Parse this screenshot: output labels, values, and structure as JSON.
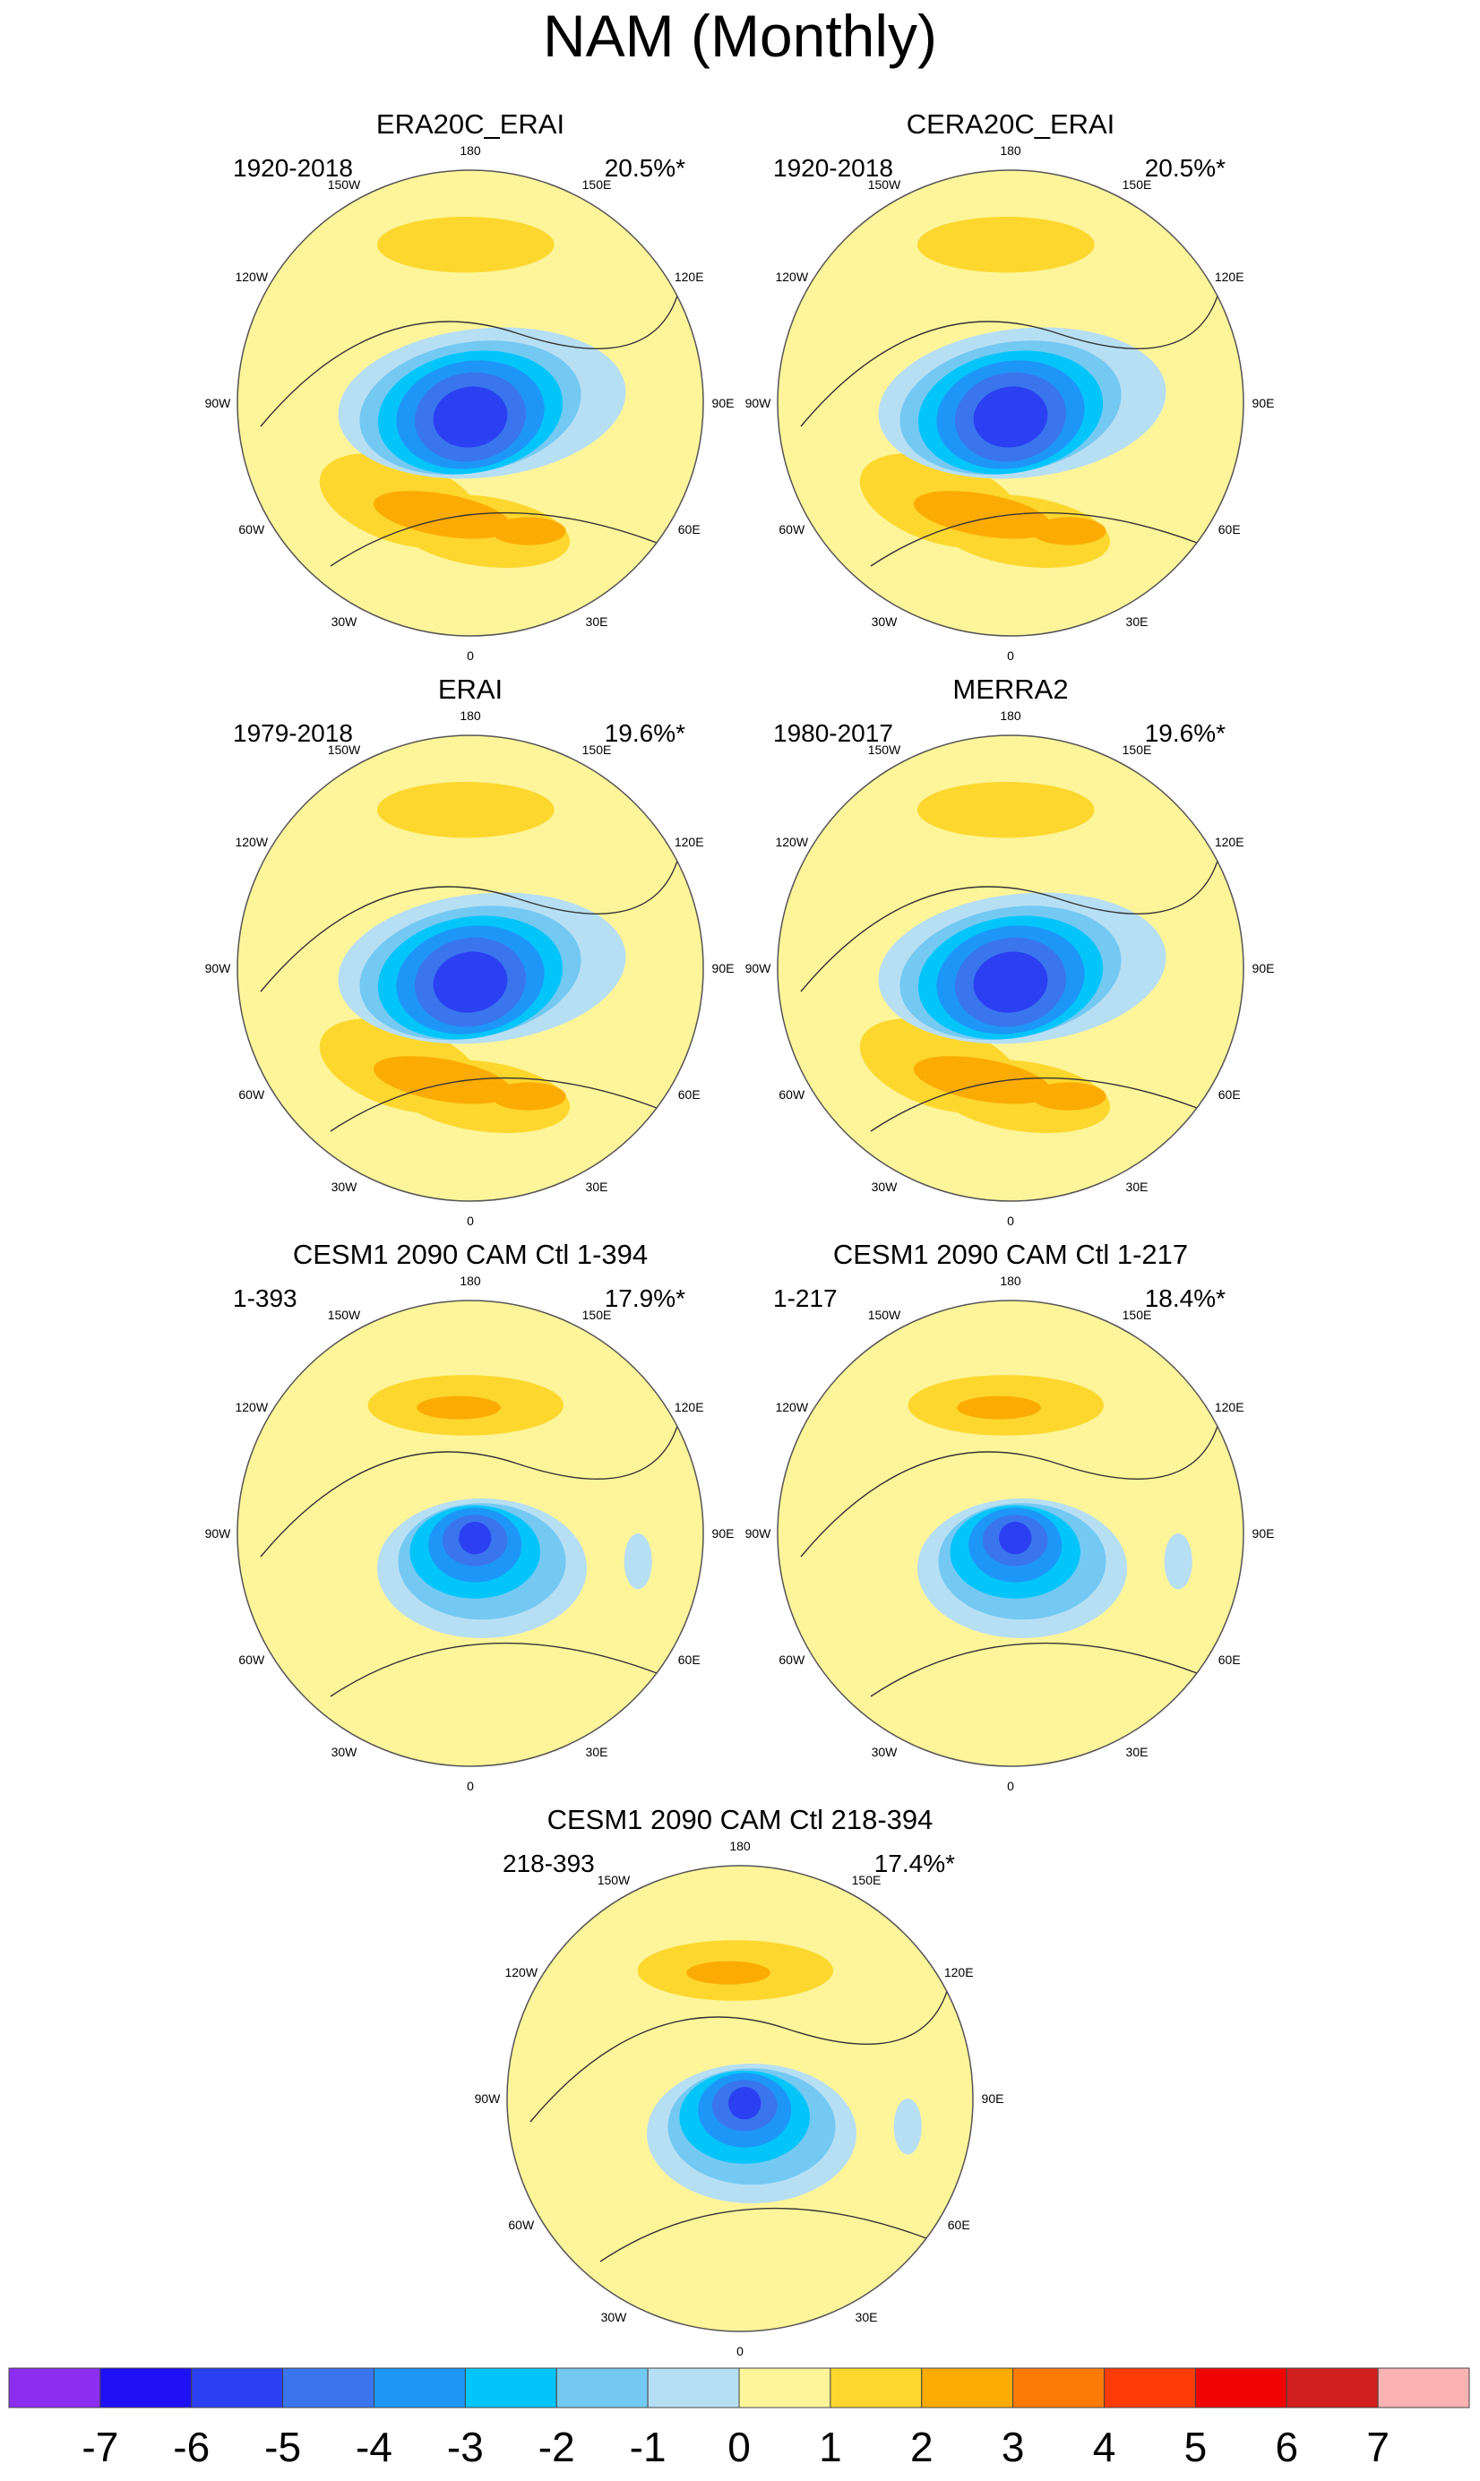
{
  "title": "NAM (Monthly)",
  "longitude_labels": [
    "180",
    "150E",
    "120E",
    "90E",
    "60E",
    "30E",
    "0",
    "30W",
    "60W",
    "90W",
    "120W",
    "150W"
  ],
  "panels": [
    {
      "title": "ERA20C_ERAI",
      "left": "1920-2018",
      "right": "20.5%*"
    },
    {
      "title": "CERA20C_ERAI",
      "left": "1920-2018",
      "right": "20.5%*"
    },
    {
      "title": "ERAI",
      "left": "1979-2018",
      "right": "19.6%*"
    },
    {
      "title": "MERRA2",
      "left": "1980-2017",
      "right": "19.6%*"
    },
    {
      "title": "CESM1 2090 CAM Ctl 1-394",
      "left": "1-393",
      "right": "17.9%*"
    },
    {
      "title": "CESM1 2090 CAM Ctl 1-217",
      "left": "1-217",
      "right": "18.4%*"
    },
    {
      "title": "CESM1 2090 CAM Ctl 218-394",
      "left": "218-393",
      "right": "17.4%*"
    }
  ],
  "colorbar": {
    "labels": [
      "-7",
      "-6",
      "-5",
      "-4",
      "-3",
      "-2",
      "-1",
      "0",
      "1",
      "2",
      "3",
      "4",
      "5",
      "6",
      "7"
    ],
    "colors": [
      "#8c2ef0",
      "#1e0ff5",
      "#2b40f0",
      "#3a75ee",
      "#1e96f8",
      "#04c5fa",
      "#74c9f2",
      "#b7dff4",
      "#fef59a",
      "#fdd72e",
      "#fcab05",
      "#fc7a06",
      "#fd3b05",
      "#f00404",
      "#d11f1f",
      "#fbb2b2"
    ]
  }
}
